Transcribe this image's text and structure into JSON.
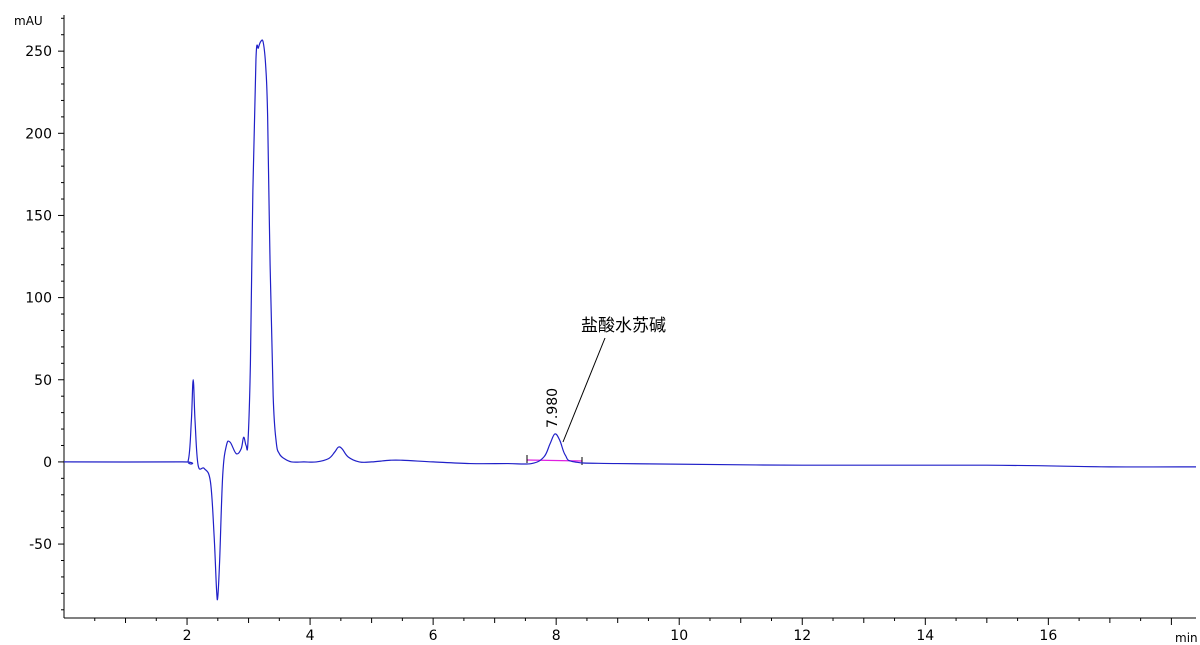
{
  "chart_data": {
    "type": "line",
    "xlabel": "min",
    "ylabel": "mAU",
    "xlim": [
      0,
      18.4
    ],
    "ylim": [
      -95,
      272
    ],
    "x_ticks": [
      2,
      4,
      6,
      8,
      10,
      12,
      14,
      16
    ],
    "x_tick_labels": [
      "2",
      "4",
      "6",
      "8",
      "10",
      "12",
      "14",
      "16"
    ],
    "y_ticks": [
      -50,
      0,
      50,
      100,
      150,
      200,
      250
    ],
    "y_tick_labels": [
      "-50",
      "0",
      "50",
      "100",
      "150",
      "200",
      "250"
    ],
    "grid": false,
    "series": [
      {
        "color": "#2020c8",
        "x": [
          0,
          1.9,
          2.02,
          2.07,
          2.1,
          2.13,
          2.18,
          2.28,
          2.38,
          2.44,
          2.48,
          2.5,
          2.53,
          2.58,
          2.64,
          2.7,
          2.8,
          2.88,
          2.92,
          2.96,
          2.99,
          3.03,
          3.07,
          3.12,
          3.16,
          3.2,
          3.24,
          3.28,
          3.31,
          3.35,
          3.4,
          3.45,
          3.5,
          3.58,
          3.7,
          3.9,
          4.1,
          4.3,
          4.4,
          4.46,
          4.52,
          4.62,
          4.8,
          5.0,
          5.3,
          5.5,
          6.0,
          6.6,
          7.2,
          7.6,
          7.8,
          7.9,
          7.98,
          8.06,
          8.15,
          8.3,
          9.0,
          12.0,
          15.0,
          17.0,
          18.4
        ],
        "values": [
          0,
          0,
          1,
          25,
          50,
          25,
          -2,
          -4,
          -12,
          -45,
          -78,
          -82,
          -60,
          -8,
          10,
          12,
          5,
          8,
          15,
          10,
          12,
          60,
          165,
          245,
          252,
          256,
          255,
          240,
          210,
          120,
          40,
          12,
          5,
          2,
          0,
          0,
          0,
          2,
          6,
          9,
          8,
          3,
          0,
          0,
          1,
          1,
          0,
          -1,
          -1,
          -1,
          3,
          11,
          17,
          13,
          4,
          0,
          -1,
          -2,
          -2,
          -3,
          -3
        ]
      }
    ],
    "annotations": [
      {
        "text": "7.980",
        "x": 7.98,
        "y": 17
      },
      {
        "text": "盐酸水苏碱",
        "x": 8.05,
        "y": 17
      }
    ]
  }
}
